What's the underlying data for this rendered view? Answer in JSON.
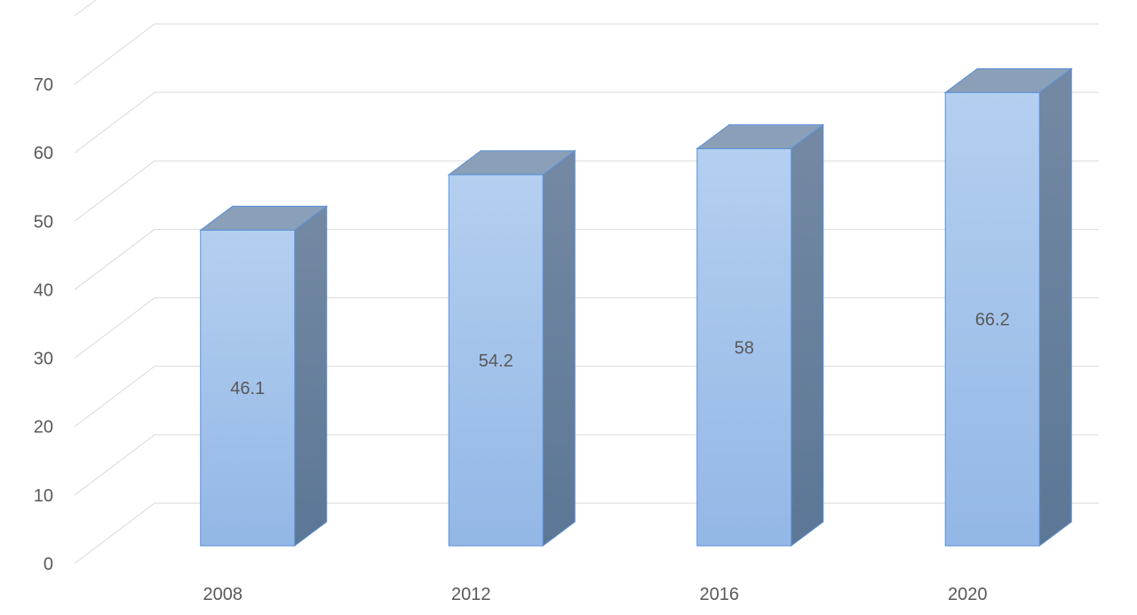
{
  "chart_data": {
    "type": "bar",
    "style": "3d-column",
    "categories": [
      "2008",
      "2012",
      "2016",
      "2020"
    ],
    "values": [
      46.1,
      54.2,
      58,
      66.2
    ],
    "data_labels": [
      "46.1",
      "54.2",
      "58",
      "66.2"
    ],
    "ylim": [
      0,
      70
    ],
    "yticks": [
      "0",
      "10",
      "20",
      "30",
      "40",
      "50",
      "60",
      "70"
    ],
    "grid": true,
    "legend": "none",
    "colors": {
      "bar_front_top": "#b4cff0",
      "bar_front_bottom": "#93b7e6",
      "bar_top": "#8a9fb8",
      "bar_side_top": "#7489a4",
      "bar_side_bottom": "#5b7795",
      "bar_edge": "#5b8fd6",
      "grid": "#d9d9d9",
      "text": "#595959"
    }
  }
}
